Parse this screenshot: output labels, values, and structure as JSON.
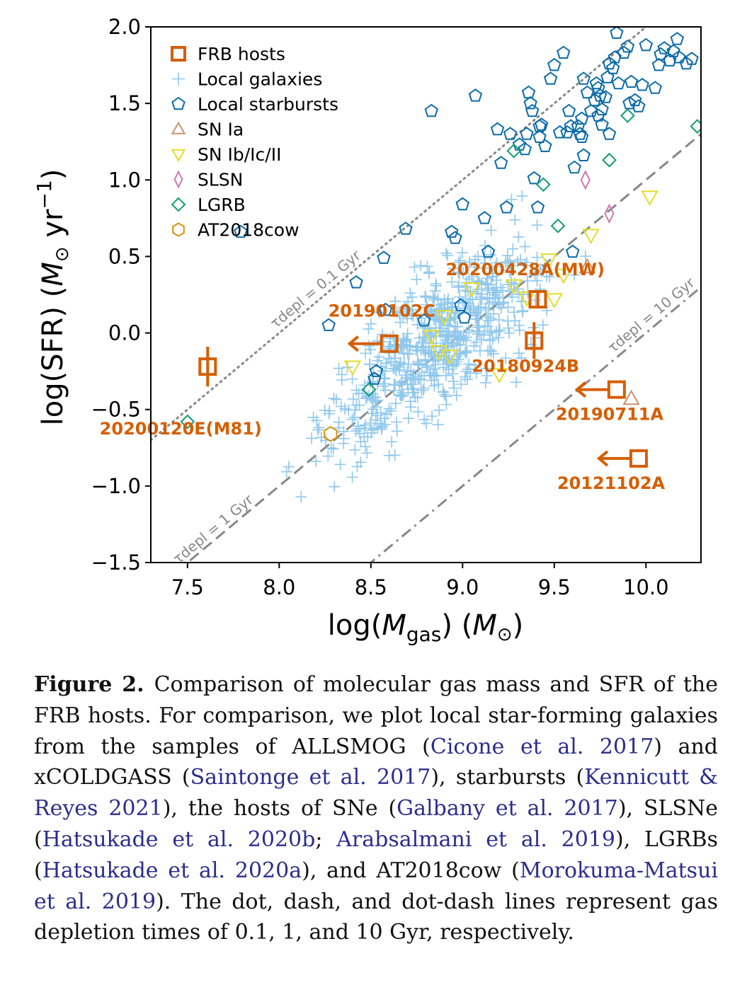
{
  "chart_data": {
    "type": "scatter",
    "xlim": [
      7.3,
      10.3
    ],
    "ylim": [
      -1.5,
      2.0
    ],
    "xticks": [
      7.5,
      8.0,
      8.5,
      9.0,
      9.5,
      10.0
    ],
    "yticks": [
      -1.5,
      -1.0,
      -0.5,
      0.0,
      0.5,
      1.0,
      1.5,
      2.0
    ],
    "xtick_labels": [
      "7.5",
      "8.0",
      "8.5",
      "9.0",
      "9.5",
      "10.0"
    ],
    "ytick_labels": [
      "−1.5",
      "−1.0",
      "−0.5",
      "0.0",
      "0.5",
      "1.0",
      "1.5",
      "2.0"
    ],
    "xlabel": "log(M_gas) (M⊙)",
    "ylabel": "log(SFR) (M⊙ yr⁻¹)",
    "legend_position": "top-left",
    "legend": [
      {
        "label": "FRB hosts",
        "marker": "square",
        "color": "#d55e00"
      },
      {
        "label": "Local galaxies",
        "marker": "plus",
        "color": "#90c8ec"
      },
      {
        "label": "Local starbursts",
        "marker": "pentagon",
        "color": "#0b6ba8"
      },
      {
        "label": "SN Ia",
        "marker": "triangle-up",
        "color": "#c89470"
      },
      {
        "label": "SN Ib/Ic/II",
        "marker": "triangle-down",
        "color": "#e6dc2a"
      },
      {
        "label": "SLSN",
        "marker": "diamond-thin",
        "color": "#cc79b4"
      },
      {
        "label": "LGRB",
        "marker": "diamond",
        "color": "#129d70"
      },
      {
        "label": "AT2018cow",
        "marker": "hexagon",
        "color": "#d9900b"
      }
    ],
    "depletion_lines": [
      {
        "tau_gyr": 0.1,
        "label": "τdepl = 0.1 Gyr",
        "style": "dotted",
        "color": "#888888"
      },
      {
        "tau_gyr": 1,
        "label": "τdepl = 1 Gyr",
        "style": "dashed",
        "color": "#888888"
      },
      {
        "tau_gyr": 10,
        "label": "τdepl = 10 Gyr",
        "style": "dashdot",
        "color": "#888888"
      }
    ],
    "frb_hosts": [
      {
        "name": "20200120E(M81)",
        "x": 7.61,
        "y": -0.22,
        "upper_limit": false,
        "yerr": 0.13
      },
      {
        "name": "20190102C",
        "x": 8.6,
        "y": -0.07,
        "upper_limit": true
      },
      {
        "name": "20200428A(MW)",
        "x": 9.41,
        "y": 0.22,
        "upper_limit": false,
        "yerr": 0
      },
      {
        "name": "20180924B",
        "x": 9.39,
        "y": -0.05,
        "upper_limit": false,
        "yerr": 0.12
      },
      {
        "name": "20190711A",
        "x": 9.84,
        "y": -0.37,
        "upper_limit": true
      },
      {
        "name": "20121102A",
        "x": 9.96,
        "y": -0.82,
        "upper_limit": true
      }
    ],
    "starbursts": [
      [
        7.79,
        0.66
      ],
      [
        8.27,
        0.05
      ],
      [
        8.58,
        0.15
      ],
      [
        8.53,
        -0.25
      ],
      [
        8.52,
        -0.3
      ],
      [
        8.79,
        0.08
      ],
      [
        8.99,
        0.18
      ],
      [
        9.01,
        0.1
      ],
      [
        8.42,
        0.33
      ],
      [
        8.57,
        0.49
      ],
      [
        8.69,
        0.68
      ],
      [
        8.83,
        1.45
      ],
      [
        8.94,
        0.66
      ],
      [
        8.96,
        0.62
      ],
      [
        9.0,
        0.84
      ],
      [
        9.07,
        1.55
      ],
      [
        9.12,
        0.75
      ],
      [
        9.14,
        0.53
      ],
      [
        9.19,
        1.33
      ],
      [
        9.21,
        1.11
      ],
      [
        9.24,
        0.82
      ],
      [
        9.26,
        1.3
      ],
      [
        9.31,
        1.23
      ],
      [
        9.34,
        1.2
      ],
      [
        9.35,
        1.3
      ],
      [
        9.37,
        1.5
      ],
      [
        9.38,
        1.45
      ],
      [
        9.36,
        1.57
      ],
      [
        9.39,
        1.01
      ],
      [
        9.41,
        0.82
      ],
      [
        9.42,
        1.35
      ],
      [
        9.42,
        1.28
      ],
      [
        9.43,
        1.36
      ],
      [
        9.45,
        1.22
      ],
      [
        9.48,
        1.66
      ],
      [
        9.5,
        1.75
      ],
      [
        9.53,
        1.31
      ],
      [
        9.55,
        1.83
      ],
      [
        9.57,
        1.31
      ],
      [
        9.58,
        1.45
      ],
      [
        9.59,
        1.35
      ],
      [
        9.6,
        0.53
      ],
      [
        9.61,
        1.08
      ],
      [
        9.63,
        1.35
      ],
      [
        9.64,
        1.3
      ],
      [
        9.65,
        1.4
      ],
      [
        9.65,
        1.28
      ],
      [
        9.66,
        1.66
      ],
      [
        9.66,
        1.16
      ],
      [
        9.68,
        1.57
      ],
      [
        9.7,
        1.45
      ],
      [
        9.72,
        1.52
      ],
      [
        9.73,
        1.63
      ],
      [
        9.74,
        1.42
      ],
      [
        9.74,
        1.6
      ],
      [
        9.75,
        1.55
      ],
      [
        9.76,
        1.46
      ],
      [
        9.76,
        1.36
      ],
      [
        9.78,
        1.54
      ],
      [
        9.79,
        1.67
      ],
      [
        9.8,
        1.3
      ],
      [
        9.8,
        1.76
      ],
      [
        9.82,
        1.73
      ],
      [
        9.83,
        1.8
      ],
      [
        9.84,
        1.96
      ],
      [
        9.85,
        1.63
      ],
      [
        9.88,
        1.83
      ],
      [
        9.9,
        1.87
      ],
      [
        9.91,
        1.5
      ],
      [
        9.92,
        1.64
      ],
      [
        9.94,
        1.52
      ],
      [
        9.96,
        1.48
      ],
      [
        9.98,
        1.62
      ],
      [
        10.0,
        1.88
      ],
      [
        10.05,
        1.6
      ],
      [
        10.07,
        1.75
      ],
      [
        10.08,
        1.82
      ],
      [
        10.1,
        1.86
      ],
      [
        10.13,
        1.78
      ],
      [
        10.15,
        1.84
      ],
      [
        10.17,
        1.92
      ],
      [
        10.18,
        1.8
      ],
      [
        10.22,
        1.76
      ],
      [
        10.25,
        1.79
      ]
    ],
    "sn_ia": [
      [
        9.68,
        0.43
      ],
      [
        9.92,
        -0.43
      ]
    ],
    "sn_cc": [
      [
        8.4,
        -0.22
      ],
      [
        8.83,
        -0.02
      ],
      [
        8.87,
        -0.12
      ],
      [
        8.9,
        0.11
      ],
      [
        8.93,
        -0.15
      ],
      [
        9.05,
        0.29
      ],
      [
        9.2,
        -0.27
      ],
      [
        9.28,
        0.31
      ],
      [
        9.35,
        0.23
      ],
      [
        9.47,
        0.48
      ],
      [
        9.5,
        0.22
      ],
      [
        9.55,
        0.38
      ],
      [
        9.7,
        0.64
      ],
      [
        10.02,
        0.89
      ]
    ],
    "slsn": [
      [
        9.67,
        1.0
      ],
      [
        9.8,
        0.78
      ]
    ],
    "lgrb": [
      [
        7.5,
        -0.58
      ],
      [
        8.49,
        -0.37
      ],
      [
        9.28,
        1.19
      ],
      [
        9.44,
        0.97
      ],
      [
        9.52,
        0.7
      ],
      [
        9.8,
        1.13
      ],
      [
        9.9,
        1.42
      ],
      [
        10.28,
        1.35
      ]
    ],
    "at2018cow": [
      [
        8.28,
        -0.66
      ]
    ]
  },
  "caption": {
    "fig_label": "Figure 2.",
    "t1": "Comparison of molecular gas mass and SFR of the FRB hosts. For comparison, we plot local star-forming galaxies from the samples of ALLSMOG (",
    "c1": "Cicone et al. 2017",
    "t2": ") and xCOLDGASS (",
    "c2": "Saintonge et al. 2017",
    "t3": "), starbursts (",
    "c3": "Kennicutt & Reyes 2021",
    "t4": "), the hosts of SNe (",
    "c4": "Galbany et al. 2017",
    "t5": "), SLSNe (",
    "c5": "Hatsukade et al. 2020b",
    "t6": "; ",
    "c6": "Arabsalmani et al. 2019",
    "t7": "), LGRBs (",
    "c7": "Hatsukade et al. 2020a",
    "t8": "), and AT2018cow (",
    "c8": "Morokuma-Matsui et al. 2019",
    "t9": "). The dot, dash, and dot-dash lines represent gas depletion times of 0.1, 1, and 10 Gyr, respectively."
  }
}
